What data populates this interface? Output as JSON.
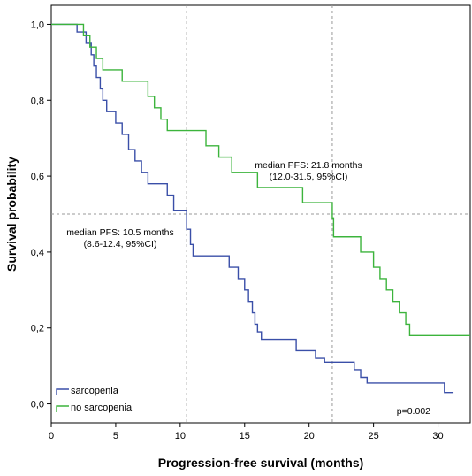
{
  "chart_data": {
    "type": "line",
    "xlabel": "Progression-free survival (months)",
    "ylabel": "Survival probability",
    "xlim": [
      0,
      32.5
    ],
    "ylim": [
      -0.05,
      1.05
    ],
    "xticks": [
      0,
      5,
      10,
      15,
      20,
      25,
      30
    ],
    "yticks": [
      0.0,
      0.2,
      0.4,
      0.6,
      0.8,
      1.0
    ],
    "ytick_labels": [
      "0,0",
      "0,2",
      "0,4",
      "0,6",
      "0,8",
      "1,0"
    ],
    "grid": false,
    "legend_position": "bottom-left",
    "reference_lines": {
      "horizontal": [
        0.5
      ],
      "vertical": [
        10.5,
        21.8
      ],
      "style": "dotted"
    },
    "series": [
      {
        "name": "sarcopenia",
        "color": "#3a4fa8",
        "step": true,
        "points": [
          [
            0,
            1.0
          ],
          [
            2.0,
            0.98
          ],
          [
            2.7,
            0.95
          ],
          [
            3.1,
            0.92
          ],
          [
            3.3,
            0.89
          ],
          [
            3.5,
            0.86
          ],
          [
            3.8,
            0.83
          ],
          [
            4.0,
            0.8
          ],
          [
            4.3,
            0.77
          ],
          [
            5.0,
            0.74
          ],
          [
            5.5,
            0.71
          ],
          [
            6.0,
            0.67
          ],
          [
            6.5,
            0.64
          ],
          [
            7.0,
            0.61
          ],
          [
            7.5,
            0.58
          ],
          [
            9.0,
            0.55
          ],
          [
            9.5,
            0.51
          ],
          [
            10.5,
            0.46
          ],
          [
            10.8,
            0.42
          ],
          [
            11.0,
            0.39
          ],
          [
            13.8,
            0.36
          ],
          [
            14.5,
            0.33
          ],
          [
            15.0,
            0.3
          ],
          [
            15.3,
            0.27
          ],
          [
            15.6,
            0.24
          ],
          [
            15.8,
            0.21
          ],
          [
            16.0,
            0.19
          ],
          [
            16.3,
            0.17
          ],
          [
            19.0,
            0.14
          ],
          [
            20.5,
            0.12
          ],
          [
            21.2,
            0.11
          ],
          [
            23.5,
            0.09
          ],
          [
            24.0,
            0.07
          ],
          [
            24.5,
            0.055
          ],
          [
            30.5,
            0.03
          ],
          [
            31.2,
            0.03
          ]
        ]
      },
      {
        "name": "no sarcopenia",
        "color": "#3cb43c",
        "step": true,
        "points": [
          [
            0,
            1.0
          ],
          [
            2.5,
            0.97
          ],
          [
            3.0,
            0.94
          ],
          [
            3.5,
            0.91
          ],
          [
            4.0,
            0.88
          ],
          [
            5.5,
            0.85
          ],
          [
            7.5,
            0.81
          ],
          [
            8.0,
            0.78
          ],
          [
            8.5,
            0.75
          ],
          [
            9.0,
            0.72
          ],
          [
            12.0,
            0.68
          ],
          [
            13.0,
            0.65
          ],
          [
            14.0,
            0.61
          ],
          [
            16.0,
            0.57
          ],
          [
            19.5,
            0.53
          ],
          [
            21.8,
            0.49
          ],
          [
            21.9,
            0.44
          ],
          [
            24.0,
            0.4
          ],
          [
            25.0,
            0.36
          ],
          [
            25.5,
            0.33
          ],
          [
            26.0,
            0.3
          ],
          [
            26.5,
            0.27
          ],
          [
            27.0,
            0.24
          ],
          [
            27.5,
            0.21
          ],
          [
            27.8,
            0.18
          ],
          [
            32.5,
            0.18
          ]
        ]
      }
    ],
    "annotations": {
      "sarcopenia_median_line1": "median PFS: 10.5 months",
      "sarcopenia_median_line2": "(8.6-12.4, 95%CI)",
      "no_sarcopenia_median_line1": "median PFS: 21.8 months",
      "no_sarcopenia_median_line2": "(12.0-31.5, 95%CI)",
      "p_value": "p=0.002"
    },
    "legend": [
      {
        "label": "sarcopenia",
        "color": "#3a4fa8"
      },
      {
        "label": "no sarcopenia",
        "color": "#3cb43c"
      }
    ]
  }
}
